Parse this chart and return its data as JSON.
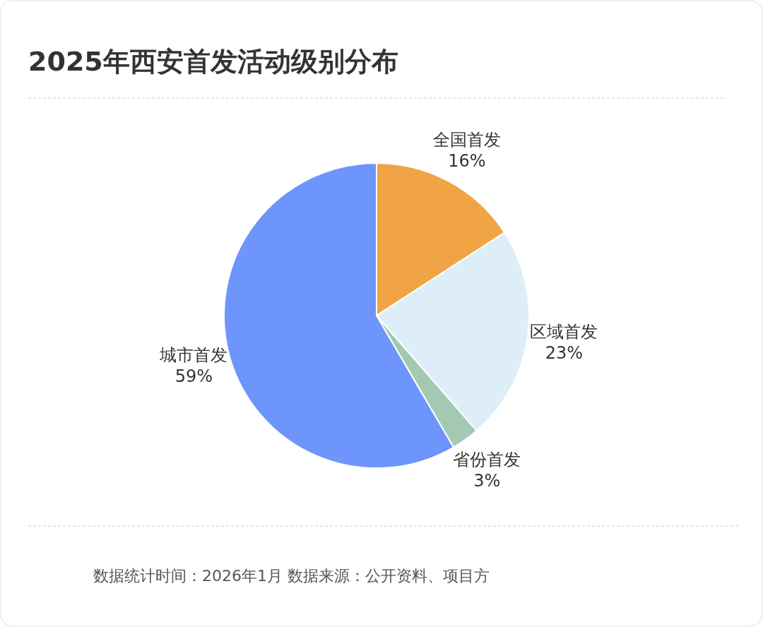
{
  "chart_data": {
    "type": "pie",
    "title": "2025年西安首发活动级别分布",
    "categories": [
      "全国首发",
      "区域首发",
      "省份首发",
      "城市首发"
    ],
    "values": [
      16,
      23,
      3,
      59
    ],
    "colors": [
      "#f0a446",
      "#ddeef9",
      "#a3c9b3",
      "#6e95fb"
    ],
    "value_labels": [
      "16%",
      "23%",
      "3%",
      "59%"
    ],
    "annotations": [
      "数据统计时间：2026年1月 数据来源：公开资料、项目方"
    ]
  }
}
